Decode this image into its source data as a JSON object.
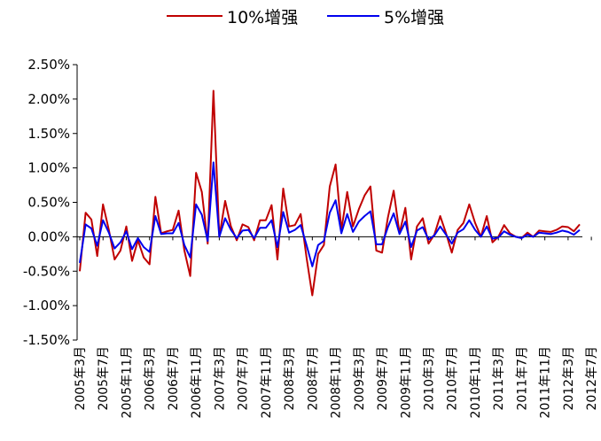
{
  "chart_data": {
    "type": "line",
    "title": "",
    "xlabel": "",
    "ylabel": "",
    "legend_position": "top-center",
    "grid": false,
    "ylim": [
      -1.5,
      2.5
    ],
    "y_ticks": [
      "2.50%",
      "2.00%",
      "1.50%",
      "1.00%",
      "0.50%",
      "0.00%",
      "-0.50%",
      "-1.00%",
      "-1.50%"
    ],
    "y_tick_values": [
      2.5,
      2.0,
      1.5,
      1.0,
      0.5,
      0.0,
      -0.5,
      -1.0,
      -1.5
    ],
    "x_tick_labels": [
      "2005年3月",
      "2005年7月",
      "2005年11月",
      "2006年3月",
      "2006年7月",
      "2006年11月",
      "2007年3月",
      "2007年7月",
      "2007年11月",
      "2008年3月",
      "2008年7月",
      "2008年11月",
      "2009年3月",
      "2009年7月",
      "2009年11月",
      "2010年3月",
      "2010年7月",
      "2010年11月",
      "2011年3月",
      "2011年7月",
      "2011年11月",
      "2012年3月",
      "2012年7月"
    ],
    "series": [
      {
        "name": "10%增强",
        "color": "#c00000",
        "values": [
          -0.5,
          0.35,
          0.25,
          -0.28,
          0.47,
          0.1,
          -0.33,
          -0.2,
          0.15,
          -0.35,
          -0.05,
          -0.3,
          -0.4,
          0.58,
          0.05,
          0.08,
          0.1,
          0.38,
          -0.2,
          -0.57,
          0.93,
          0.65,
          -0.1,
          2.12,
          0.0,
          0.52,
          0.15,
          -0.05,
          0.18,
          0.14,
          -0.05,
          0.24,
          0.24,
          0.46,
          -0.33,
          0.7,
          0.15,
          0.17,
          0.33,
          -0.3,
          -0.85,
          -0.25,
          -0.12,
          0.73,
          1.05,
          0.1,
          0.65,
          0.15,
          0.4,
          0.6,
          0.73,
          -0.2,
          -0.23,
          0.28,
          0.67,
          0.05,
          0.42,
          -0.33,
          0.15,
          0.27,
          -0.1,
          0.03,
          0.3,
          0.05,
          -0.23,
          0.1,
          0.2,
          0.47,
          0.2,
          0.0,
          0.3,
          -0.08,
          0.0,
          0.17,
          0.05,
          0.0,
          -0.02,
          0.06,
          0.0,
          0.09,
          0.08,
          0.07,
          0.1,
          0.15,
          0.14,
          0.08,
          0.18
        ]
      },
      {
        "name": "5%增强",
        "color": "#0000ee",
        "values": [
          -0.38,
          0.18,
          0.12,
          -0.13,
          0.24,
          0.06,
          -0.17,
          -0.08,
          0.08,
          -0.18,
          -0.02,
          -0.15,
          -0.22,
          0.3,
          0.04,
          0.05,
          0.05,
          0.2,
          -0.12,
          -0.3,
          0.47,
          0.32,
          -0.06,
          1.08,
          0.0,
          0.27,
          0.1,
          -0.02,
          0.09,
          0.1,
          -0.02,
          0.13,
          0.13,
          0.24,
          -0.15,
          0.36,
          0.06,
          0.1,
          0.17,
          -0.12,
          -0.43,
          -0.12,
          -0.06,
          0.35,
          0.53,
          0.05,
          0.33,
          0.07,
          0.22,
          0.3,
          0.37,
          -0.11,
          -0.11,
          0.14,
          0.34,
          0.04,
          0.22,
          -0.15,
          0.09,
          0.14,
          -0.04,
          0.02,
          0.15,
          0.03,
          -0.1,
          0.06,
          0.11,
          0.24,
          0.1,
          0.0,
          0.15,
          -0.03,
          -0.01,
          0.08,
          0.03,
          0.0,
          -0.02,
          0.03,
          0.0,
          0.06,
          0.05,
          0.04,
          0.06,
          0.09,
          0.07,
          0.03,
          0.1
        ]
      }
    ]
  }
}
